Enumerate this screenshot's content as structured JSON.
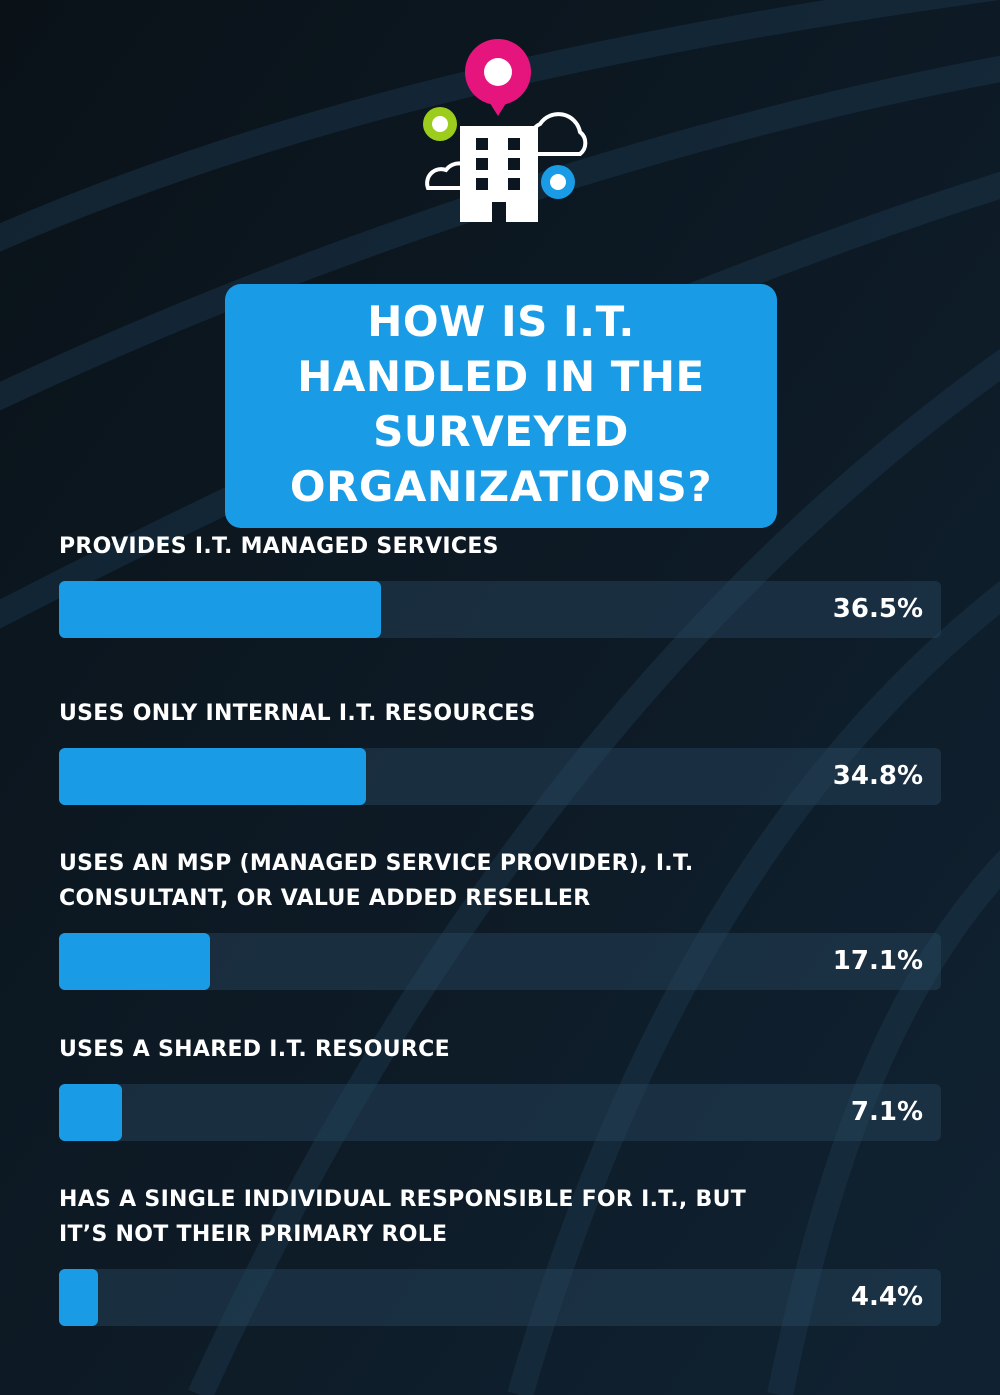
{
  "chart_data": {
    "type": "bar",
    "orientation": "horizontal",
    "title": "HOW IS I.T. HANDLED IN THE SURVEYED ORGANIZATIONS?",
    "categories": [
      "PROVIDES I.T. MANAGED SERVICES",
      "USES ONLY INTERNAL I.T. RESOURCES",
      "USES AN MSP (MANAGED SERVICE PROVIDER), I.T. CONSULTANT, OR VALUE ADDED RESELLER",
      "USES A SHARED I.T. RESOURCE",
      "HAS A SINGLE INDIVIDUAL RESPONSIBLE FOR I.T., BUT IT’S NOT THEIR PRIMARY ROLE"
    ],
    "values": [
      36.5,
      34.8,
      17.1,
      7.1,
      4.4
    ],
    "value_labels": [
      "36.5%",
      "34.8%",
      "17.1%",
      "7.1%",
      "4.4%"
    ],
    "color": "#1a9be6",
    "xlim": [
      0,
      100
    ]
  }
}
